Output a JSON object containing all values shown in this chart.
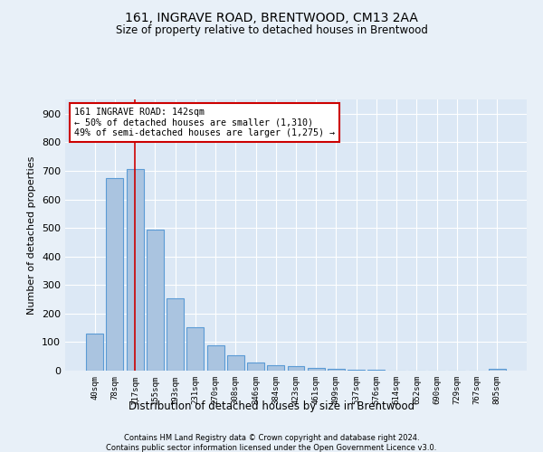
{
  "title": "161, INGRAVE ROAD, BRENTWOOD, CM13 2AA",
  "subtitle": "Size of property relative to detached houses in Brentwood",
  "xlabel": "Distribution of detached houses by size in Brentwood",
  "ylabel": "Number of detached properties",
  "footer_line1": "Contains HM Land Registry data © Crown copyright and database right 2024.",
  "footer_line2": "Contains public sector information licensed under the Open Government Licence v3.0.",
  "categories": [
    "40sqm",
    "78sqm",
    "117sqm",
    "155sqm",
    "193sqm",
    "231sqm",
    "270sqm",
    "308sqm",
    "346sqm",
    "384sqm",
    "423sqm",
    "461sqm",
    "499sqm",
    "537sqm",
    "576sqm",
    "614sqm",
    "652sqm",
    "690sqm",
    "729sqm",
    "767sqm",
    "805sqm"
  ],
  "values": [
    130,
    675,
    705,
    493,
    252,
    152,
    88,
    55,
    27,
    18,
    15,
    9,
    6,
    3,
    2,
    1,
    0,
    0,
    0,
    0,
    5
  ],
  "bar_color": "#aac4e0",
  "bar_edge_color": "#5b9bd5",
  "annotation_line1": "161 INGRAVE ROAD: 142sqm",
  "annotation_line2": "← 50% of detached houses are smaller (1,310)",
  "annotation_line3": "49% of semi-detached houses are larger (1,275) →",
  "vline_color": "#cc0000",
  "annotation_box_color": "#ffffff",
  "annotation_box_edge_color": "#cc0000",
  "bg_color": "#e8f0f8",
  "plot_bg_color": "#dce8f5",
  "ylim": [
    0,
    950
  ],
  "yticks": [
    0,
    100,
    200,
    300,
    400,
    500,
    600,
    700,
    800,
    900
  ]
}
